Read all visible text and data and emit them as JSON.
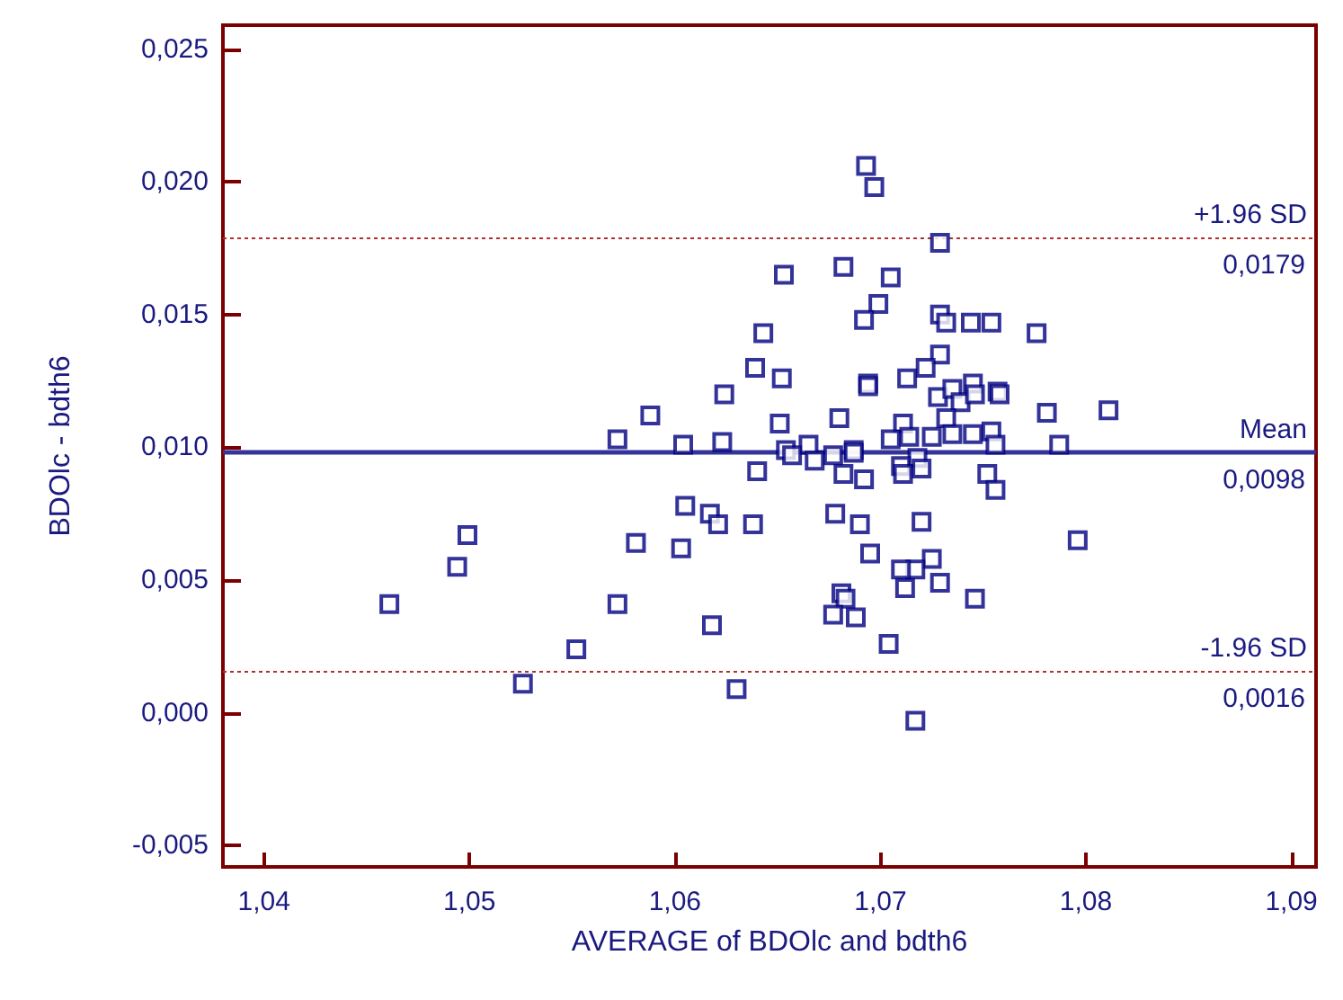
{
  "chart_data": {
    "type": "scatter",
    "xlabel": "AVERAGE of BDOlc and bdth6",
    "ylabel": "BDOlc - bdth6",
    "marker": "square",
    "grid": false,
    "xlim": [
      1.038,
      1.0912
    ],
    "ylim": [
      -0.0058,
      0.0259
    ],
    "xticks": [
      {
        "value": 1.04,
        "label": "1,04"
      },
      {
        "value": 1.05,
        "label": "1,05"
      },
      {
        "value": 1.06,
        "label": "1,06"
      },
      {
        "value": 1.07,
        "label": "1,07"
      },
      {
        "value": 1.08,
        "label": "1,08"
      },
      {
        "value": 1.09,
        "label": "1,09"
      }
    ],
    "yticks": [
      {
        "value": -0.005,
        "label": "-0,005"
      },
      {
        "value": 0,
        "label": "0,000"
      },
      {
        "value": 0.005,
        "label": "0,005"
      },
      {
        "value": 0.01,
        "label": "0,010"
      },
      {
        "value": 0.015,
        "label": "0,015"
      },
      {
        "value": 0.02,
        "label": "0,020"
      },
      {
        "value": 0.025,
        "label": "0,025"
      }
    ],
    "series": [
      {
        "color": "#000080",
        "x": [
          1.0461,
          1.0494,
          1.0499,
          1.0526,
          1.0552,
          1.0572,
          1.0572,
          1.0581,
          1.0588,
          1.0603,
          1.0604,
          1.0605,
          1.0617,
          1.0618,
          1.0621,
          1.0623,
          1.0624,
          1.063,
          1.0638,
          1.064,
          1.0639,
          1.0643,
          1.0651,
          1.0652,
          1.0653,
          1.0654,
          1.0693,
          1.0697,
          1.0729,
          1.0682,
          1.0705,
          1.0699,
          1.0692,
          1.0729,
          1.0732,
          1.0744,
          1.0754,
          1.0776,
          1.0729,
          1.0722,
          1.0694,
          1.0694,
          1.0713,
          1.0728,
          1.0735,
          1.0739,
          1.0745,
          1.0746,
          1.0757,
          1.0758,
          1.0781,
          1.0811,
          1.068,
          1.0711,
          1.0732,
          1.0714,
          1.0725,
          1.0735,
          1.0745,
          1.0754,
          1.0756,
          1.0787,
          1.0705,
          1.0665,
          1.0657,
          1.0677,
          1.0687,
          1.0687,
          1.0718,
          1.0668,
          1.071,
          1.0711,
          1.072,
          1.0682,
          1.0692,
          1.0752,
          1.0756,
          1.0678,
          1.069,
          1.072,
          1.0796,
          1.0695,
          1.0725,
          1.0717,
          1.071,
          1.0729,
          1.0681,
          1.0683,
          1.0712,
          1.0746,
          1.0677,
          1.0688,
          1.0704,
          1.0717
        ],
        "values": [
          0.0041,
          0.0055,
          0.0067,
          0.0011,
          0.0024,
          0.0041,
          0.0103,
          0.0064,
          0.0112,
          0.0062,
          0.0101,
          0.0078,
          0.0075,
          0.0033,
          0.0071,
          0.0102,
          0.012,
          0.0009,
          0.0071,
          0.0091,
          0.013,
          0.0143,
          0.0109,
          0.0126,
          0.0165,
          0.0099,
          0.0206,
          0.0198,
          0.0177,
          0.0168,
          0.0164,
          0.0154,
          0.0148,
          0.015,
          0.0147,
          0.0147,
          0.0147,
          0.0143,
          0.0135,
          0.013,
          0.0124,
          0.0123,
          0.0126,
          0.0119,
          0.0122,
          0.0117,
          0.0124,
          0.012,
          0.0121,
          0.012,
          0.0113,
          0.0114,
          0.0111,
          0.0109,
          0.0111,
          0.0104,
          0.0104,
          0.0105,
          0.0105,
          0.0106,
          0.0101,
          0.0101,
          0.0103,
          0.0101,
          0.0097,
          0.0097,
          0.0099,
          0.0098,
          0.0096,
          0.0095,
          0.0093,
          0.009,
          0.0092,
          0.009,
          0.0088,
          0.009,
          0.0084,
          0.0075,
          0.0071,
          0.0072,
          0.0065,
          0.006,
          0.0058,
          0.0054,
          0.0054,
          0.0049,
          0.0045,
          0.0043,
          0.0047,
          0.0043,
          0.0037,
          0.0036,
          0.0026,
          -0.0003
        ]
      }
    ],
    "ref_lines": [
      {
        "axis": "y",
        "value": 0.0179,
        "label": "+1.96 SD",
        "color": "#b03030",
        "line_style": "dotted"
      },
      {
        "axis": "y",
        "value": 0.0098,
        "label": "Mean",
        "color": "#333399",
        "line_style": "solid"
      },
      {
        "axis": "y",
        "value": 0.0016,
        "label": "-1.96 SD",
        "color": "#b03030",
        "line_style": "dotted"
      }
    ],
    "annotations": [
      "0,0179",
      "0,0098",
      "0,0016"
    ]
  }
}
